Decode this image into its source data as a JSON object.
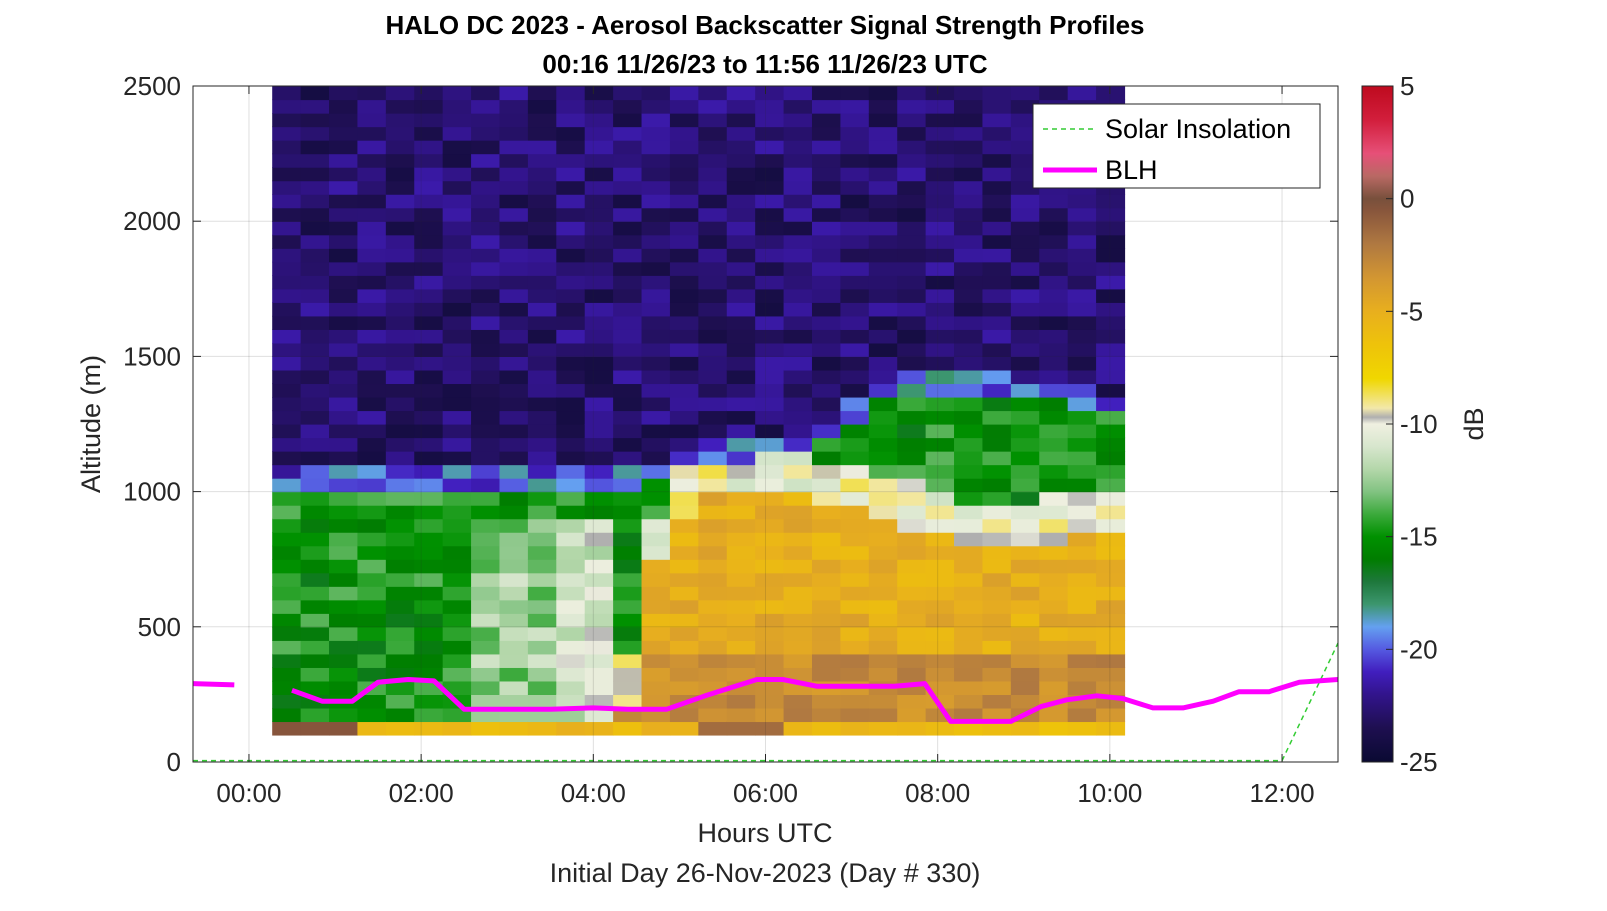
{
  "chart_data": {
    "type": "heatmap",
    "title": "HALO DC 2023 - Aerosol Backscatter Signal Strength Profiles",
    "subtitle": "00:16 11/26/23 to 11:56 11/26/23  UTC",
    "xlabel": "Hours UTC",
    "xlabel2": "Initial Day 26-Nov-2023 (Day # 330)",
    "ylabel": "Altitude (m)",
    "xlim": [
      -0.65,
      12.65
    ],
    "ylim": [
      0,
      2500
    ],
    "grid": true,
    "x_ticks": [
      0,
      2,
      4,
      6,
      8,
      10,
      12
    ],
    "x_tick_labels": [
      "00:00",
      "02:00",
      "04:00",
      "06:00",
      "08:00",
      "10:00",
      "12:00"
    ],
    "y_ticks": [
      0,
      500,
      1000,
      1500,
      2000,
      2500
    ],
    "y_tick_labels": [
      "0",
      "500",
      "1000",
      "1500",
      "2000",
      "2500"
    ],
    "colorbar": {
      "label": "dB",
      "range": [
        -25,
        5
      ],
      "ticks": [
        5,
        0,
        -5,
        -10,
        -15,
        -20,
        -25
      ],
      "tick_labels": [
        "5",
        "0",
        "-5",
        "-10",
        "-15",
        "-20",
        "-25"
      ]
    },
    "legend": {
      "placement": "top-right",
      "entries": [
        {
          "label": "Solar Insolation",
          "color": "#33cc33",
          "style": "dashed"
        },
        {
          "label": "BLH",
          "color": "#ff00ff",
          "style": "solid"
        }
      ]
    },
    "heatmap": {
      "x_start": 0.27,
      "x_step": 0.33,
      "n_cols": 30,
      "y_start": 100,
      "y_step": 50,
      "n_rows": 48
    },
    "blh_segments": [
      {
        "x": [
          -0.65,
          -0.17
        ],
        "y": [
          290,
          285
        ]
      },
      {
        "x": [
          0.5,
          0.85,
          1.2,
          1.5,
          1.85,
          2.15,
          2.5,
          3.0,
          3.5,
          4.0,
          4.4,
          4.85,
          5.3,
          5.9,
          6.2,
          6.6,
          7.0,
          7.5,
          7.85,
          8.15,
          8.5,
          8.85,
          9.2,
          9.5,
          9.85,
          10.15,
          10.5,
          10.85,
          11.2,
          11.5,
          11.85,
          12.2,
          12.65
        ],
        "y": [
          265,
          225,
          225,
          295,
          305,
          300,
          195,
          195,
          195,
          200,
          195,
          195,
          245,
          305,
          305,
          280,
          280,
          280,
          290,
          150,
          150,
          150,
          205,
          230,
          245,
          235,
          200,
          200,
          225,
          260,
          260,
          295,
          305
        ]
      }
    ],
    "solar_insolation": {
      "x": [
        -0.65,
        12.0,
        12.65
      ],
      "y": [
        5,
        5,
        440
      ]
    }
  }
}
